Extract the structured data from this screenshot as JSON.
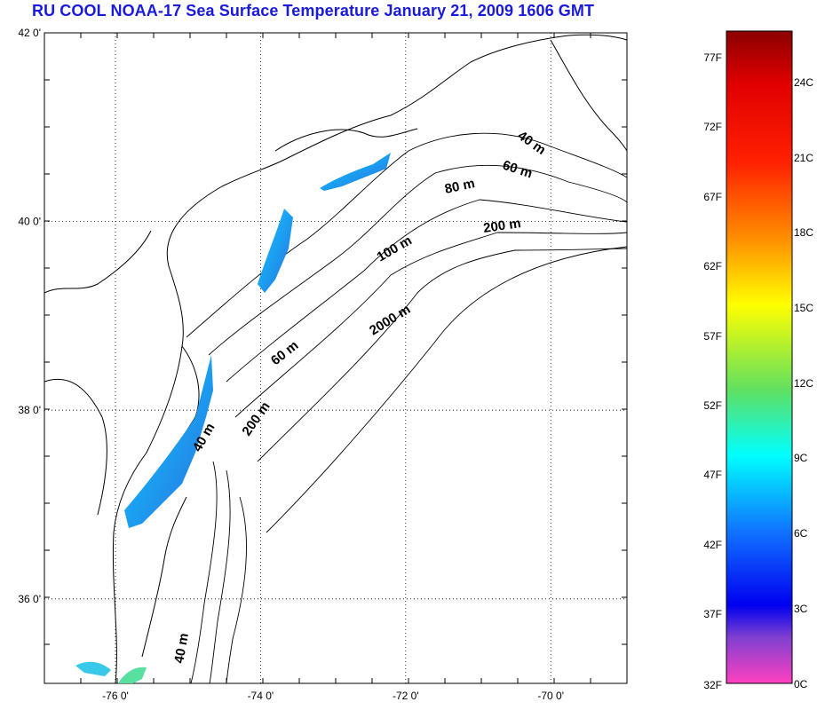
{
  "title": "RU COOL  NOAA-17 Sea Surface Temperature January 21, 2009 1606 GMT",
  "map": {
    "lat_range": [
      35,
      42
    ],
    "lon_range": [
      -77,
      -69
    ],
    "lat_ticks": [
      {
        "value": 42,
        "label": "42 0'"
      },
      {
        "value": 40,
        "label": "40 0'"
      },
      {
        "value": 38,
        "label": "38 0'"
      },
      {
        "value": 36,
        "label": "36 0'"
      }
    ],
    "lon_ticks": [
      {
        "value": -76,
        "label": "-76 0'"
      },
      {
        "value": -74,
        "label": "-74 0'"
      },
      {
        "value": -72,
        "label": "-72 0'"
      },
      {
        "value": -70,
        "label": "-70 0'"
      }
    ],
    "grid": "dotted",
    "depth_labels": [
      "40 m",
      "60 m",
      "80 m",
      "200 m",
      "100 m",
      "2000 m",
      "60 m",
      "200 m",
      "40 m",
      "40 m"
    ]
  },
  "colorbar": {
    "fahrenheit": [
      "77F",
      "72F",
      "67F",
      "62F",
      "57F",
      "52F",
      "47F",
      "42F",
      "37F",
      "32F"
    ],
    "celsius": [
      "24C",
      "21C",
      "18C",
      "15C",
      "12C",
      "9C",
      "6C",
      "3C",
      "0C"
    ],
    "colors": [
      "#8b0000",
      "#ff0000",
      "#ff8000",
      "#ffff00",
      "#40e060",
      "#00ffff",
      "#1060ff",
      "#0000ff",
      "#a040e0",
      "#ff40c0"
    ]
  }
}
